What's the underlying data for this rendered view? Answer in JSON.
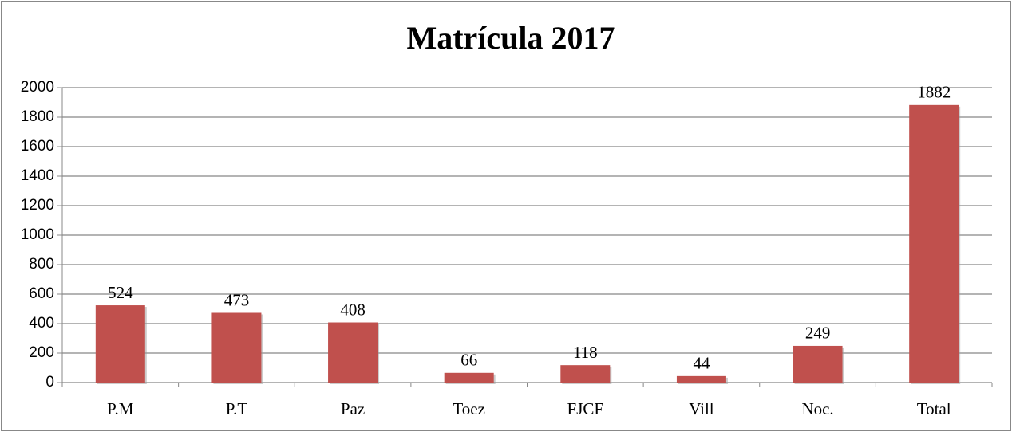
{
  "chart_data": {
    "type": "bar",
    "title": "Matrícula 2017",
    "categories": [
      "P.M",
      "P.T",
      "Paz",
      "Toez",
      "FJCF",
      "Vill",
      "Noc.",
      "Total"
    ],
    "values": [
      524,
      473,
      408,
      66,
      118,
      44,
      249,
      1882
    ],
    "color": "#c0504d",
    "ylim": [
      0,
      2000
    ],
    "yticks": [
      0,
      200,
      400,
      600,
      800,
      1000,
      1200,
      1400,
      1600,
      1800,
      2000
    ],
    "grid": true
  }
}
